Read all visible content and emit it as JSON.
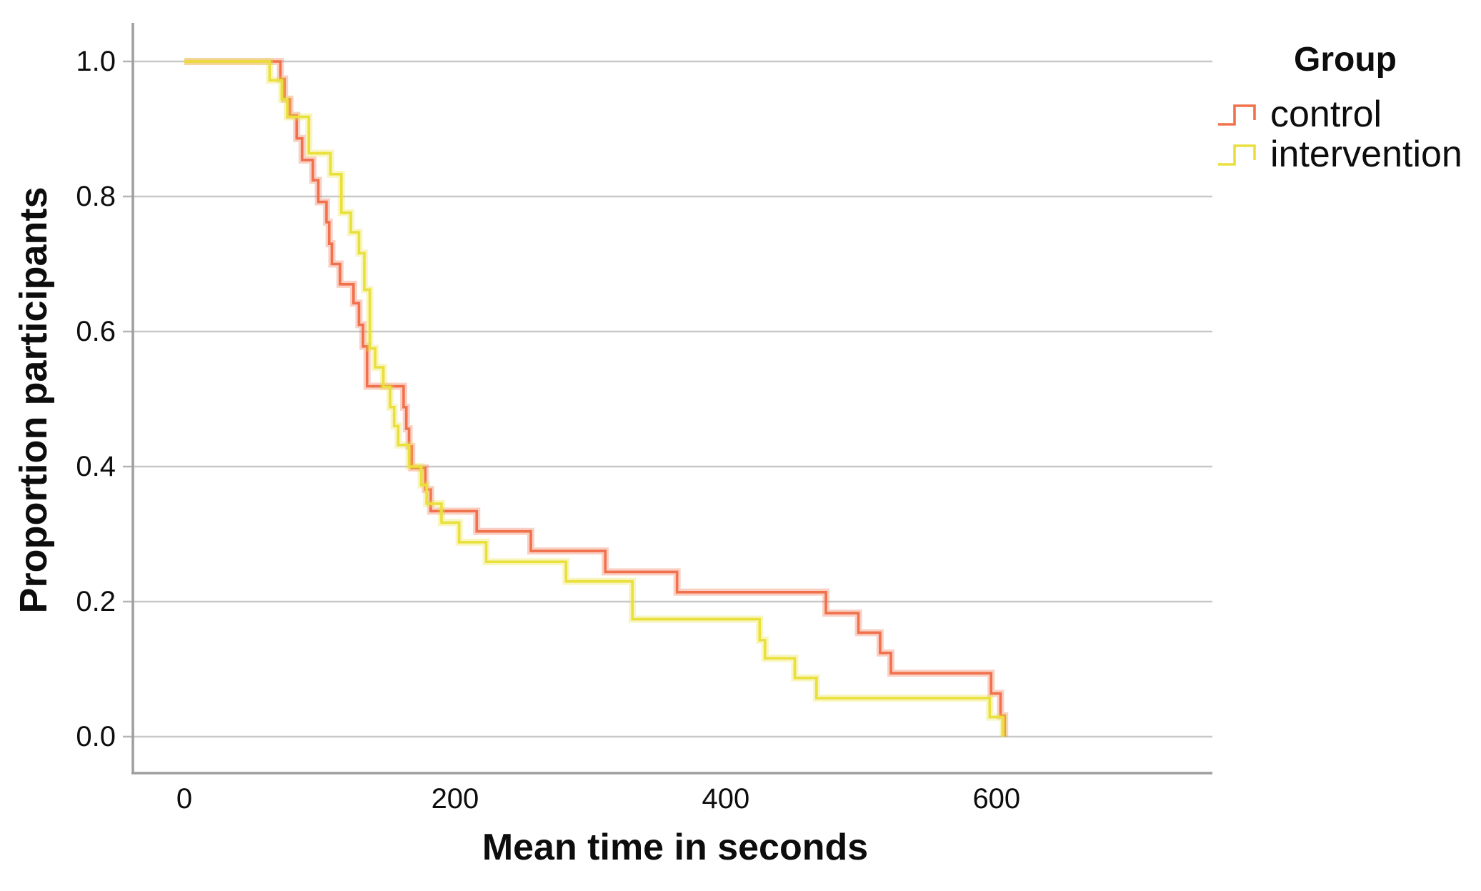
{
  "figure": {
    "background_color": "#ffffff",
    "text_color": "#0d0d0d",
    "gridline_color": "#c8c8c8",
    "axis_line_color": "#9e9e9e"
  },
  "chart_data": {
    "type": "line",
    "subtype": "kaplan-meier-step-survival",
    "title": "",
    "xlabel": "Mean time in seconds",
    "ylabel": "Proportion participants",
    "x_ticks": [
      {
        "value": 0,
        "label": "0"
      },
      {
        "value": 200,
        "label": "200"
      },
      {
        "value": 400,
        "label": "400"
      },
      {
        "value": 600,
        "label": "600"
      }
    ],
    "y_ticks": [
      {
        "value": 1.0,
        "label": "1.0"
      },
      {
        "value": 0.8,
        "label": "0.8"
      },
      {
        "value": 0.6,
        "label": "0.6"
      },
      {
        "value": 0.4,
        "label": "0.4"
      },
      {
        "value": 0.2,
        "label": "0.2"
      },
      {
        "value": 0.0,
        "label": "0.0"
      }
    ],
    "xlim": [
      -38,
      758
    ],
    "ylim": [
      -0.054,
      1.034
    ],
    "grid": "horizontal",
    "legend": {
      "title": "Group",
      "position": "top-right",
      "entries": [
        {
          "label": "control",
          "color": "#F1714C"
        },
        {
          "label": "intervention",
          "color": "#E9E03C"
        }
      ]
    },
    "series": [
      {
        "name": "control",
        "color": "#F1714C",
        "start": [
          0,
          1.0
        ],
        "steps": [
          [
            71,
            0.974
          ],
          [
            74,
            0.944
          ],
          [
            78,
            0.92
          ],
          [
            83,
            0.886
          ],
          [
            87,
            0.854
          ],
          [
            95,
            0.824
          ],
          [
            99,
            0.792
          ],
          [
            105,
            0.762
          ],
          [
            107,
            0.73
          ],
          [
            109,
            0.7
          ],
          [
            115,
            0.67
          ],
          [
            125,
            0.642
          ],
          [
            129,
            0.61
          ],
          [
            132,
            0.578
          ],
          [
            135,
            0.519
          ],
          [
            162,
            0.488
          ],
          [
            164,
            0.456
          ],
          [
            166,
            0.43
          ],
          [
            168,
            0.398
          ],
          [
            178,
            0.366
          ],
          [
            182,
            0.334
          ],
          [
            216,
            0.304
          ],
          [
            256,
            0.275
          ],
          [
            311,
            0.244
          ],
          [
            364,
            0.214
          ],
          [
            474,
            0.183
          ],
          [
            498,
            0.154
          ],
          [
            514,
            0.124
          ],
          [
            522,
            0.094
          ],
          [
            596,
            0.064
          ],
          [
            603,
            0.031
          ],
          [
            606,
            0.0
          ]
        ]
      },
      {
        "name": "intervention",
        "color": "#E9E03C",
        "start": [
          0,
          1.0
        ],
        "steps": [
          [
            63,
            0.972
          ],
          [
            72,
            0.944
          ],
          [
            76,
            0.918
          ],
          [
            92,
            0.864
          ],
          [
            108,
            0.833
          ],
          [
            116,
            0.776
          ],
          [
            123,
            0.747
          ],
          [
            129,
            0.716
          ],
          [
            133,
            0.662
          ],
          [
            137,
            0.575
          ],
          [
            141,
            0.547
          ],
          [
            147,
            0.518
          ],
          [
            152,
            0.488
          ],
          [
            155,
            0.46
          ],
          [
            158,
            0.432
          ],
          [
            166,
            0.4
          ],
          [
            175,
            0.373
          ],
          [
            179,
            0.345
          ],
          [
            190,
            0.317
          ],
          [
            203,
            0.288
          ],
          [
            223,
            0.259
          ],
          [
            282,
            0.23
          ],
          [
            331,
            0.174
          ],
          [
            425,
            0.143
          ],
          [
            429,
            0.116
          ],
          [
            451,
            0.087
          ],
          [
            467,
            0.057
          ],
          [
            595,
            0.029
          ],
          [
            605,
            0.0
          ]
        ]
      }
    ]
  }
}
